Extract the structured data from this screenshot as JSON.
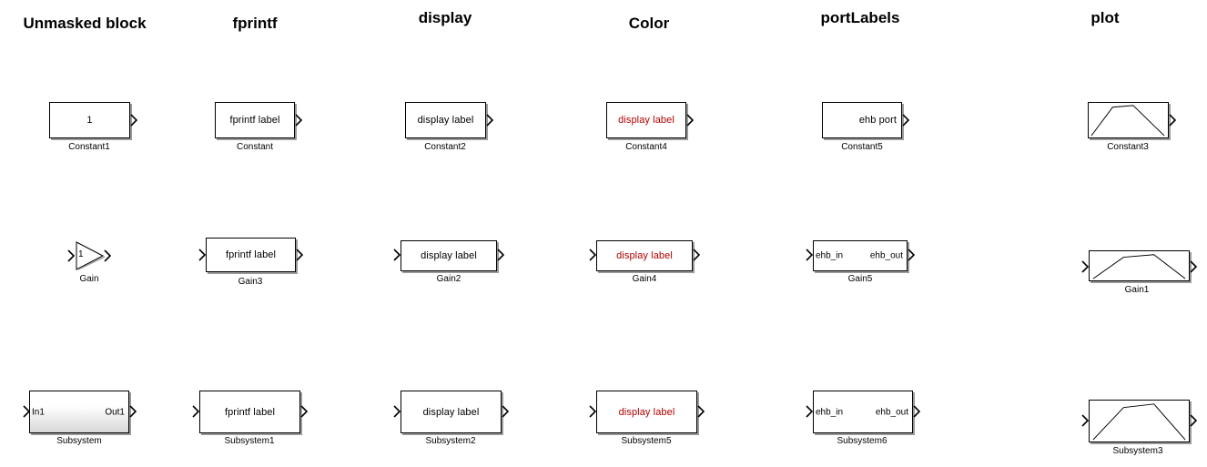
{
  "columns": [
    {
      "heading": "Unmasked block"
    },
    {
      "heading": "fprintf"
    },
    {
      "heading": "display"
    },
    {
      "heading": "Color"
    },
    {
      "heading": "portLabels"
    },
    {
      "heading": "plot"
    }
  ],
  "blocks": {
    "constant1": {
      "name": "Constant1",
      "text": "1"
    },
    "constant": {
      "name": "Constant",
      "text": "fprintf label"
    },
    "constant2": {
      "name": "Constant2",
      "text": "display label"
    },
    "constant4": {
      "name": "Constant4",
      "text": "display label"
    },
    "constant5": {
      "name": "Constant5",
      "text": "ehb port"
    },
    "constant3": {
      "name": "Constant3"
    },
    "gain": {
      "name": "Gain",
      "text": "1"
    },
    "gain3": {
      "name": "Gain3",
      "text": "fprintf label"
    },
    "gain2": {
      "name": "Gain2",
      "text": "display label"
    },
    "gain4": {
      "name": "Gain4",
      "text": "display label"
    },
    "gain5": {
      "name": "Gain5",
      "in": "ehb_in",
      "out": "ehb_out"
    },
    "gain1": {
      "name": "Gain1"
    },
    "subsystem": {
      "name": "Subsystem",
      "in": "In1",
      "out": "Out1"
    },
    "subsystem1": {
      "name": "Subsystem1",
      "text": "fprintf label"
    },
    "subsystem2": {
      "name": "Subsystem2",
      "text": "display label"
    },
    "subsystem5": {
      "name": "Subsystem5",
      "text": "display label"
    },
    "subsystem6": {
      "name": "Subsystem6",
      "in": "ehb_in",
      "out": "ehb_out"
    },
    "subsystem3": {
      "name": "Subsystem3"
    }
  },
  "colors": {
    "mask_text": "#b20000",
    "shadow": "#9a9a9a"
  }
}
